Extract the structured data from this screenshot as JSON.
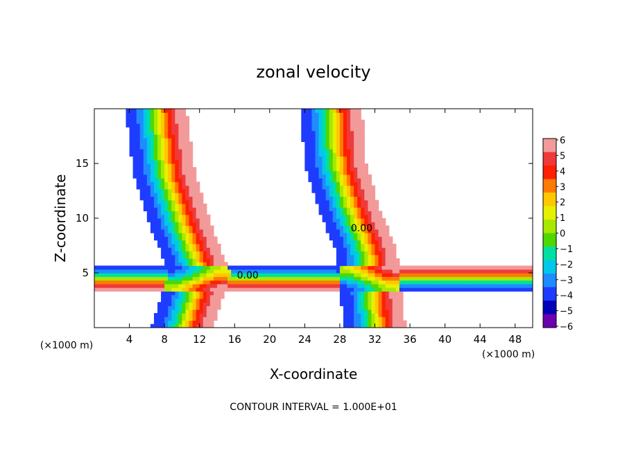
{
  "chart_data": {
    "type": "heatmap",
    "title": "zonal velocity",
    "xlabel": "X-coordinate",
    "ylabel": "Z-coordinate",
    "x_unit_left": "(×1000 m)",
    "x_unit_right": "(×1000 m)",
    "footer": "CONTOUR INTERVAL = 1.000E+01",
    "xlim": [
      0,
      50
    ],
    "ylim": [
      0,
      20
    ],
    "xticks": [
      4,
      8,
      12,
      16,
      20,
      24,
      28,
      32,
      36,
      40,
      44,
      48
    ],
    "yticks": [
      5,
      10,
      15
    ],
    "colorbar": {
      "levels": [
        6,
        5,
        4,
        3,
        2,
        1,
        0,
        -1,
        -2,
        -3,
        -4,
        -5,
        -6
      ],
      "labels": [
        "6",
        "5",
        "4",
        "3",
        "2",
        "1",
        "0",
        "−1",
        "−2",
        "−3",
        "−4",
        "−5",
        "−6"
      ],
      "colors": [
        "#f29a9a",
        "#ee3a3a",
        "#ff2000",
        "#ff7a00",
        "#ffc800",
        "#e6f000",
        "#a8e800",
        "#4ed800",
        "#00e0a0",
        "#00c8e8",
        "#1e8cff",
        "#1e3cff",
        "#0000b8",
        "#6a00b0"
      ]
    },
    "contour_labels": [
      {
        "text": "0.00",
        "x": 17.5,
        "y": 4.5
      },
      {
        "text": "0.00",
        "x": 30.5,
        "y": 8.8
      }
    ],
    "wave_features": [
      {
        "name": "left-tower",
        "center_x": [
          7,
          8,
          10,
          12,
          10
        ],
        "center_y": [
          20,
          14,
          9,
          5,
          0
        ],
        "width": 7
      },
      {
        "name": "right-tower",
        "center_x": [
          27,
          27.5,
          29,
          31,
          32
        ],
        "center_y": [
          20,
          15,
          11,
          7,
          0
        ],
        "width": 7
      },
      {
        "name": "low-band",
        "y_center": 4.5,
        "x_range": [
          0,
          50
        ],
        "width": 2.5
      }
    ]
  }
}
